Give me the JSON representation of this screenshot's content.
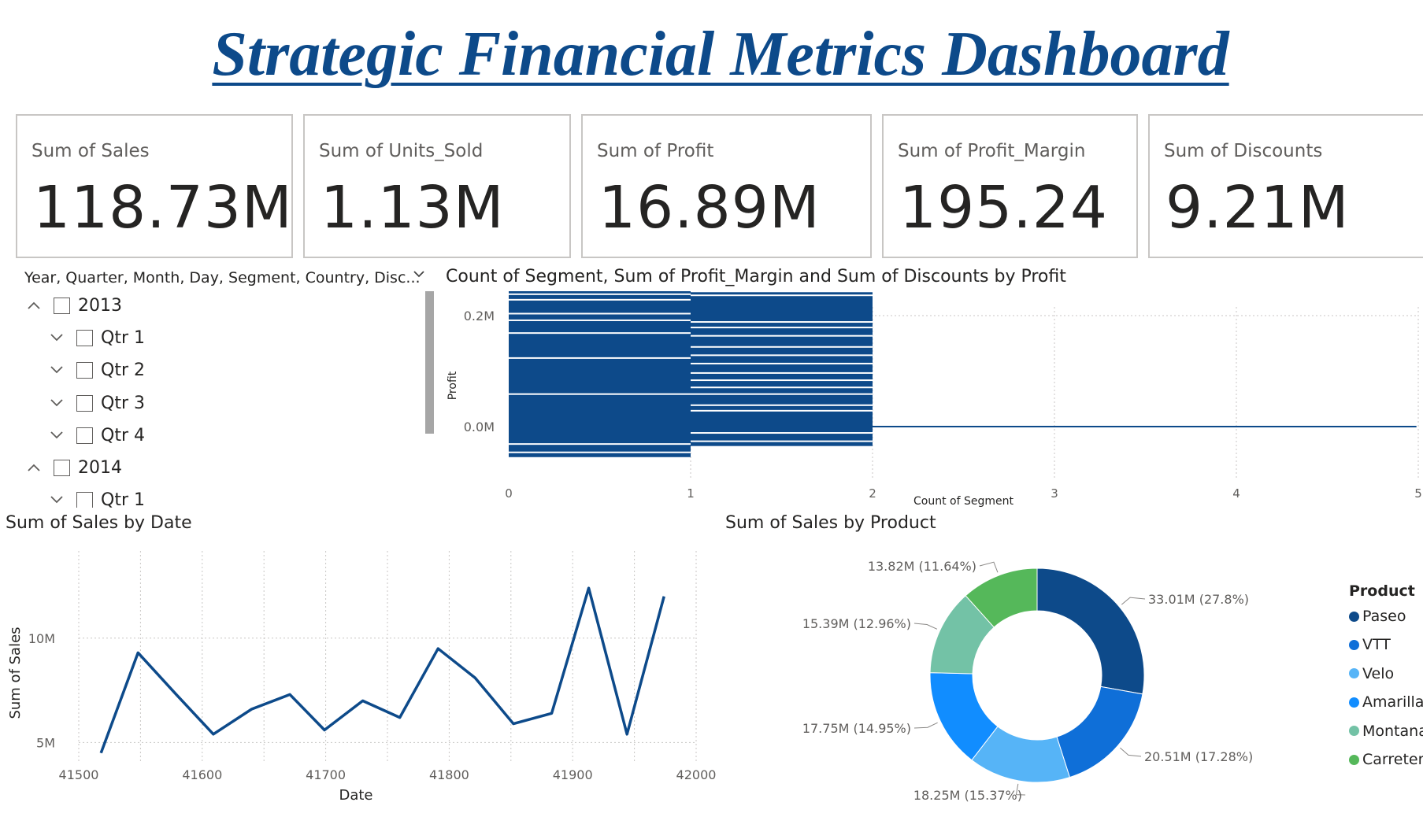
{
  "title": "Strategic Financial Metrics Dashboard",
  "cards": [
    {
      "label": "Sum of Sales",
      "value": "118.73M"
    },
    {
      "label": "Sum of Units_Sold",
      "value": "1.13M"
    },
    {
      "label": "Sum of Profit",
      "value": "16.89M"
    },
    {
      "label": "Sum of Profit_Margin",
      "value": "195.24"
    },
    {
      "label": "Sum of Discounts",
      "value": "9.21M"
    }
  ],
  "slicer": {
    "header": "Year, Quarter, Month, Day, Segment, Country, Disc...",
    "rows": [
      {
        "label": "2013",
        "expanded": true
      },
      {
        "label": "Qtr 1",
        "expanded": false
      },
      {
        "label": "Qtr 2",
        "expanded": false
      },
      {
        "label": "Qtr 3",
        "expanded": false
      },
      {
        "label": "Qtr 4",
        "expanded": false
      },
      {
        "label": "2014",
        "expanded": true
      },
      {
        "label": "Qtr 1",
        "expanded": false
      }
    ]
  },
  "chart_data": [
    {
      "type": "bar",
      "orientation": "horizontal",
      "title": "Count of Segment, Sum of Profit_Margin and Sum of Discounts by Profit",
      "xlabel": "Count of Segment",
      "ylabel": "Profit",
      "xlim": [
        0,
        5
      ],
      "xticks": [
        "0",
        "1",
        "2",
        "3",
        "4",
        "5"
      ],
      "yticks": [
        "0.2M",
        "0.0M"
      ],
      "color": "#0d4a8a",
      "note_values": "Approximate: dense band of bars at count 1 spanning roughly -0.03M to 0.26M profit; bars at count 2 spanning roughly -0.03M to 0.25M; one thin bar extending to count 5 near 0.0M."
    },
    {
      "type": "line",
      "title": "Sum of Sales by Date",
      "xlabel": "Date",
      "ylabel": "Sum of Sales",
      "xlim": [
        41500,
        42000
      ],
      "ylim": [
        4.3,
        13.8
      ],
      "xticks": [
        "41500",
        "41600",
        "41700",
        "41800",
        "41900",
        "42000"
      ],
      "yticks": [
        "10M",
        "5M"
      ],
      "color": "#0d4a8a",
      "x": [
        41518,
        41548,
        41579,
        41609,
        41640,
        41671,
        41699,
        41730,
        41760,
        41791,
        41821,
        41852,
        41883,
        41913,
        41944,
        41974
      ],
      "y": [
        4.5,
        9.3,
        7.3,
        5.4,
        6.6,
        7.3,
        5.6,
        7.0,
        6.2,
        9.5,
        8.1,
        5.9,
        6.4,
        12.4,
        5.4,
        12.0
      ]
    },
    {
      "type": "pie",
      "donut": true,
      "title": "Sum of Sales by Product",
      "legend_title": "Product",
      "legend_position": "right",
      "slices": [
        {
          "name": "Paseo",
          "value": 33.01,
          "label": "33.01M (27.8%)",
          "color": "#0d4a8a"
        },
        {
          "name": "VTT",
          "value": 20.51,
          "label": "20.51M (17.28%)",
          "color": "#0f6fd8"
        },
        {
          "name": "Velo",
          "value": 18.25,
          "label": "18.25M (15.37%)",
          "color": "#56b4f7"
        },
        {
          "name": "Amarilla",
          "value": 17.75,
          "label": "17.75M (14.95%)",
          "color": "#118dff"
        },
        {
          "name": "Montana",
          "value": 15.39,
          "label": "15.39M (12.96%)",
          "color": "#73c2a6"
        },
        {
          "name": "Carretera",
          "value": 13.82,
          "label": "13.82M (11.64%)",
          "color": "#55b85a"
        }
      ]
    }
  ]
}
